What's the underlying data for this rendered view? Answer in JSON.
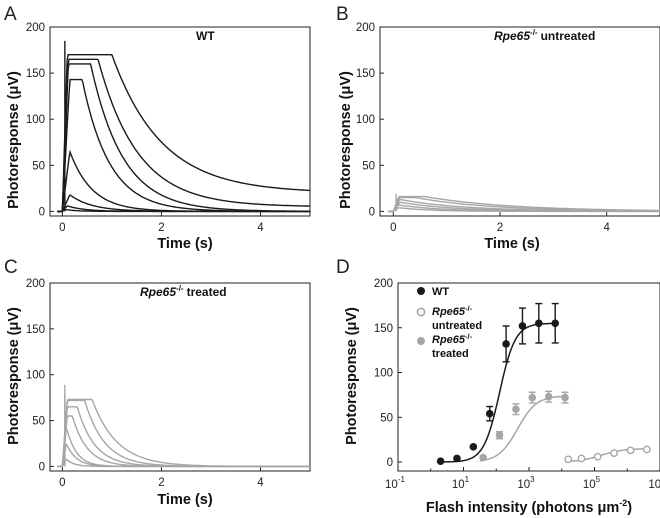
{
  "colors": {
    "wt": "#1a1a1a",
    "rpe": "#a6a6a6",
    "axis": "#222222"
  },
  "chart_data": [
    {
      "panel": "A",
      "type": "line",
      "title": "WT",
      "xlabel": "Time (s)",
      "ylabel": "Photoresponse (μV)",
      "xlim": [
        -0.25,
        5
      ],
      "ylim": [
        -5,
        200
      ],
      "xticks": [
        0,
        2,
        4
      ],
      "yticks": [
        0,
        50,
        100,
        150,
        200
      ],
      "series_color": "wt",
      "traces": [
        {
          "peak": 2,
          "tpeak": 0.06,
          "tau": 0.25,
          "noise": 2
        },
        {
          "peak": 6,
          "tpeak": 0.1,
          "tau": 0.35
        },
        {
          "peak": 18,
          "tpeak": 0.15,
          "tau": 0.45
        },
        {
          "peak": 65,
          "tpeak": 0.15,
          "tau": 0.45
        },
        {
          "peak": 143,
          "tpeak": 0.15,
          "tau": 0.55,
          "plateau": 0.25
        },
        {
          "peak": 160,
          "tpeak": 0.12,
          "tau": 0.65,
          "plateau": 0.45
        },
        {
          "peak": 165,
          "tpeak": 0.12,
          "tau": 0.8,
          "plateau": 0.6,
          "tail": 5
        },
        {
          "peak": 170,
          "tpeak": 0.1,
          "tau": 1.0,
          "plateau": 0.9,
          "tail": 20,
          "spike": 185
        }
      ]
    },
    {
      "panel": "B",
      "type": "line",
      "title_italic": "Rpe65",
      "title_sup": "-/-",
      "title": "untreated",
      "xlabel": "Time (s)",
      "ylabel": "Photoresponse (μV)",
      "xlim": [
        -0.25,
        5
      ],
      "ylim": [
        -5,
        200
      ],
      "xticks": [
        0,
        2,
        4
      ],
      "yticks": [
        0,
        50,
        100,
        150,
        200
      ],
      "series_color": "rpe",
      "traces": [
        {
          "peak": 4,
          "tpeak": 0.1,
          "tau": 0.6
        },
        {
          "peak": 7,
          "tpeak": 0.1,
          "tau": 0.8
        },
        {
          "peak": 10,
          "tpeak": 0.12,
          "tau": 1.0
        },
        {
          "peak": 13,
          "tpeak": 0.12,
          "tau": 1.2
        },
        {
          "peak": 15,
          "tpeak": 0.12,
          "tau": 1.4,
          "plateau": 0.3
        },
        {
          "peak": 16,
          "tpeak": 0.1,
          "tau": 1.6,
          "plateau": 0.5,
          "spike": 19
        }
      ]
    },
    {
      "panel": "C",
      "type": "line",
      "title_italic": "Rpe65",
      "title_sup": "-/-",
      "title": "treated",
      "xlabel": "Time (s)",
      "ylabel": "Photoresponse (μV)",
      "xlim": [
        -0.25,
        5
      ],
      "ylim": [
        -5,
        200
      ],
      "xticks": [
        0,
        2,
        4
      ],
      "yticks": [
        0,
        50,
        100,
        150,
        200
      ],
      "series_color": "rpe",
      "traces": [
        {
          "peak": 8,
          "tpeak": 0.08,
          "tau": 0.15
        },
        {
          "peak": 25,
          "tpeak": 0.08,
          "tau": 0.2
        },
        {
          "peak": 43,
          "tpeak": 0.08,
          "tau": 0.2
        },
        {
          "peak": 55,
          "tpeak": 0.1,
          "tau": 0.3,
          "plateau": 0.1
        },
        {
          "peak": 65,
          "tpeak": 0.1,
          "tau": 0.35,
          "plateau": 0.2
        },
        {
          "peak": 72,
          "tpeak": 0.1,
          "tau": 0.4,
          "plateau": 0.35,
          "spike": 78
        },
        {
          "peak": 73,
          "tpeak": 0.1,
          "tau": 0.5,
          "plateau": 0.5,
          "spike": 89
        }
      ]
    },
    {
      "panel": "D",
      "type": "scatter",
      "xlabel": "Flash intensity (photons μm",
      "xlabel_sup": "-2",
      "xlabel_end": ")",
      "ylabel": "Photoresponse (μV)",
      "xscale": "log",
      "xlim_log10": [
        -1,
        7
      ],
      "ylim": [
        -10,
        200
      ],
      "xticks_log10": [
        -1,
        1,
        3,
        5,
        7
      ],
      "yticks": [
        0,
        50,
        100,
        150,
        200
      ],
      "xtick_base": "10",
      "legend": [
        {
          "label": "WT",
          "color": "wt",
          "marker": "filled"
        },
        {
          "label_italic": "Rpe65",
          "label_sup": "-/-",
          "label_line2": "untreated",
          "color": "rpe",
          "marker": "open"
        },
        {
          "label_italic": "Rpe65",
          "label_sup": "-/-",
          "label_line2": "treated",
          "color": "rpe",
          "marker": "filled"
        }
      ],
      "series": [
        {
          "name": "WT",
          "color": "wt",
          "marker": "filled",
          "x_log10": [
            0.3,
            0.8,
            1.3,
            1.8,
            2.3,
            2.8,
            3.3,
            3.8
          ],
          "y": [
            1,
            4,
            17,
            54,
            132,
            152,
            155,
            155
          ],
          "err": [
            0,
            0,
            0,
            8,
            20,
            20,
            22,
            22
          ],
          "fit": {
            "ymax": 155,
            "x50_log10": 2.1,
            "slope": 1.8
          }
        },
        {
          "name": "Rpe65-/- treated",
          "color": "rpe",
          "marker": "filled",
          "x_log10": [
            1.6,
            2.1,
            2.6,
            3.1,
            3.6,
            4.1
          ],
          "y": [
            5,
            30,
            59,
            72,
            73,
            72
          ],
          "err": [
            0,
            4,
            6,
            6,
            6,
            6
          ],
          "fit": {
            "ymax": 74,
            "x50_log10": 2.65,
            "slope": 1.5
          }
        },
        {
          "name": "Rpe65-/- untreated",
          "color": "rpe",
          "marker": "open",
          "x_log10": [
            4.2,
            4.6,
            5.1,
            5.6,
            6.1,
            6.6
          ],
          "y": [
            3,
            4,
            6,
            10,
            13,
            14
          ],
          "err": [
            0,
            0,
            0,
            0,
            0,
            0
          ],
          "fit": {
            "ymax": 15,
            "x50_log10": 5.2,
            "slope": 1.3
          }
        }
      ]
    }
  ]
}
